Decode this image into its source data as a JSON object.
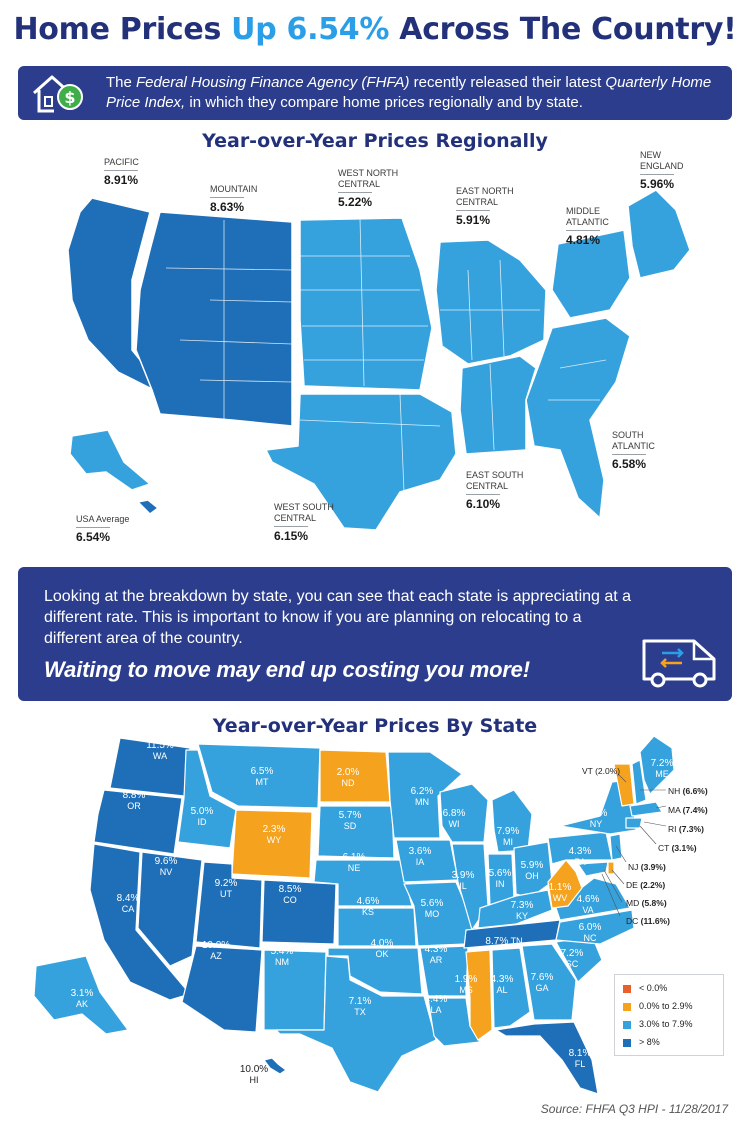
{
  "title": {
    "part1": "Home Prices ",
    "highlight": "Up 6.54%",
    "part2": " Across The Country!"
  },
  "banner": {
    "t1": "The ",
    "i1": "Federal Housing Finance Agency (FHFA)",
    "t2": " recently released their latest ",
    "i2": "Quarterly Home Price Index,",
    "t3": " in which they compare home prices regionally and by state.",
    "icon": "house-dollar-icon"
  },
  "colors": {
    "navy": "#2b3d8c",
    "title": "#22317a",
    "accent": "#2a9ee6",
    "dark_blue": "#1f6fb8",
    "light_blue": "#35a2de",
    "orange": "#f5a21f",
    "red": "#e8602c"
  },
  "regional": {
    "title": "Year-over-Year Prices Regionally",
    "regions": [
      {
        "name": "PACIFIC",
        "value": "8.91%"
      },
      {
        "name": "MOUNTAIN",
        "value": "8.63%"
      },
      {
        "name": "WEST NORTH CENTRAL",
        "value": "5.22%"
      },
      {
        "name": "EAST NORTH CENTRAL",
        "value": "5.91%"
      },
      {
        "name": "MIDDLE ATLANTIC",
        "value": "4.81%"
      },
      {
        "name": "NEW ENGLAND",
        "value": "5.96%"
      },
      {
        "name": "SOUTH ATLANTIC",
        "value": "6.58%"
      },
      {
        "name": "EAST SOUTH CENTRAL",
        "value": "6.10%"
      },
      {
        "name": "WEST SOUTH CENTRAL",
        "value": "6.15%"
      },
      {
        "name": "USA Average",
        "value": "6.54%"
      }
    ]
  },
  "message": {
    "text": "Looking at the breakdown by state, you can see that each state is appreciating at a different rate. This is important to know if you are planning on relocating to a different area of the country.",
    "bold": "Waiting to move may end up costing you more!",
    "icon": "moving-van-icon"
  },
  "states_section": {
    "title": "Year-over-Year Prices By State",
    "states": [
      {
        "code": "WA",
        "pct": "11.5%"
      },
      {
        "code": "OR",
        "pct": "8.8%"
      },
      {
        "code": "CA",
        "pct": "8.4%"
      },
      {
        "code": "NV",
        "pct": "9.6%"
      },
      {
        "code": "ID",
        "pct": "5.0%"
      },
      {
        "code": "MT",
        "pct": "6.5%"
      },
      {
        "code": "WY",
        "pct": "2.3%"
      },
      {
        "code": "UT",
        "pct": "9.2%"
      },
      {
        "code": "CO",
        "pct": "8.5%"
      },
      {
        "code": "AZ",
        "pct": "10.0%"
      },
      {
        "code": "NM",
        "pct": "5.4%"
      },
      {
        "code": "ND",
        "pct": "2.0%"
      },
      {
        "code": "SD",
        "pct": "5.7%"
      },
      {
        "code": "NE",
        "pct": "6.1%"
      },
      {
        "code": "KS",
        "pct": "4.6%"
      },
      {
        "code": "OK",
        "pct": "4.0%"
      },
      {
        "code": "TX",
        "pct": "7.1%"
      },
      {
        "code": "MN",
        "pct": "6.2%"
      },
      {
        "code": "IA",
        "pct": "3.6%"
      },
      {
        "code": "MO",
        "pct": "5.6%"
      },
      {
        "code": "AR",
        "pct": "4.3%"
      },
      {
        "code": "LA",
        "pct": "4.4%"
      },
      {
        "code": "WI",
        "pct": "6.8%"
      },
      {
        "code": "IL",
        "pct": "3.9%"
      },
      {
        "code": "MI",
        "pct": "7.9%"
      },
      {
        "code": "IN",
        "pct": "5.6%"
      },
      {
        "code": "OH",
        "pct": "5.9%"
      },
      {
        "code": "KY",
        "pct": "7.3%"
      },
      {
        "code": "TN",
        "pct": "8.7%"
      },
      {
        "code": "MS",
        "pct": "1.9%"
      },
      {
        "code": "AL",
        "pct": "4.3%"
      },
      {
        "code": "GA",
        "pct": "7.6%"
      },
      {
        "code": "FL",
        "pct": "8.1%"
      },
      {
        "code": "SC",
        "pct": "7.2%"
      },
      {
        "code": "NC",
        "pct": "6.0%"
      },
      {
        "code": "VA",
        "pct": "4.6%"
      },
      {
        "code": "WV",
        "pct": "1.1%"
      },
      {
        "code": "PA",
        "pct": "4.3%"
      },
      {
        "code": "NY",
        "pct": "5.8%"
      },
      {
        "code": "ME",
        "pct": "7.2%"
      },
      {
        "code": "AK",
        "pct": "3.1%"
      },
      {
        "code": "HI",
        "pct": "10.0%"
      }
    ],
    "callouts": [
      {
        "code": "VT",
        "pct": "(2.0%)"
      },
      {
        "code": "NH",
        "pct": "(6.6%)"
      },
      {
        "code": "MA",
        "pct": "(7.4%)"
      },
      {
        "code": "RI",
        "pct": "(7.3%)"
      },
      {
        "code": "CT",
        "pct": "(3.1%)"
      },
      {
        "code": "NJ",
        "pct": "(3.9%)"
      },
      {
        "code": "DE",
        "pct": "(2.2%)"
      },
      {
        "code": "MD",
        "pct": "(5.8%)"
      },
      {
        "code": "DC",
        "pct": "(11.6%)"
      }
    ],
    "legend": [
      {
        "label": "< 0.0%",
        "color": "#e8602c"
      },
      {
        "label": "0.0% to 2.9%",
        "color": "#f5a21f"
      },
      {
        "label": "3.0% to 7.9%",
        "color": "#35a2de"
      },
      {
        "label": "> 8%",
        "color": "#1f6fb8"
      }
    ]
  },
  "source": "Source: FHFA Q3 HPI - 11/28/2017"
}
